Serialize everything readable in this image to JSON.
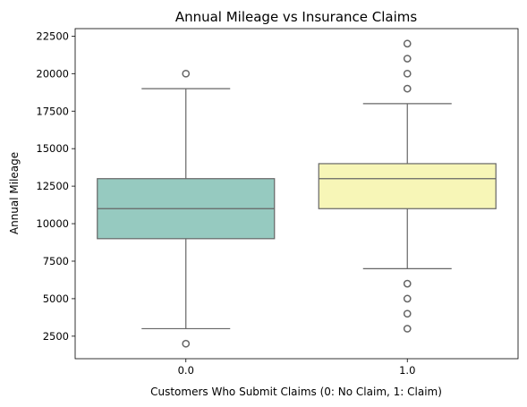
{
  "chart_data": {
    "type": "box",
    "title": "Annual Mileage vs Insurance Claims",
    "xlabel": "Customers Who Submit Claims (0: No Claim, 1: Claim)",
    "ylabel": "Annual Mileage",
    "categories": [
      "0.0",
      "1.0"
    ],
    "ylim": [
      1000,
      23000
    ],
    "yticks": [
      2500,
      5000,
      7500,
      10000,
      12500,
      15000,
      17500,
      20000,
      22500
    ],
    "grid": false,
    "boxes": [
      {
        "category": "0.0",
        "whisker_low": 3000,
        "q1": 9000,
        "median": 11000,
        "q3": 13000,
        "whisker_high": 19000,
        "outliers": [
          2000,
          20000
        ],
        "color": "#96cac0"
      },
      {
        "category": "1.0",
        "whisker_low": 7000,
        "q1": 11000,
        "median": 13000,
        "q3": 14000,
        "whisker_high": 18000,
        "outliers": [
          3000,
          4000,
          5000,
          6000,
          19000,
          20000,
          21000,
          22000
        ],
        "color": "#f7f6b7"
      }
    ]
  }
}
